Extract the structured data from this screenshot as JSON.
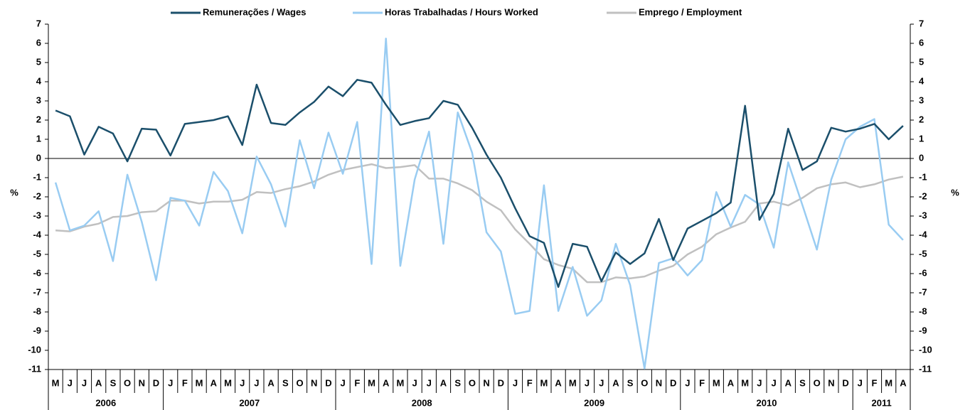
{
  "chart_data": {
    "type": "line",
    "categories": [
      "M",
      "J",
      "J",
      "A",
      "S",
      "O",
      "N",
      "D",
      "J",
      "F",
      "M",
      "A",
      "M",
      "J",
      "J",
      "A",
      "S",
      "O",
      "N",
      "D",
      "J",
      "F",
      "M",
      "A",
      "M",
      "J",
      "J",
      "A",
      "S",
      "O",
      "N",
      "D",
      "J",
      "F",
      "M",
      "A",
      "M",
      "J",
      "J",
      "A",
      "S",
      "O",
      "N",
      "D",
      "J",
      "F",
      "M",
      "A",
      "M",
      "J",
      "J",
      "A",
      "S",
      "O",
      "N",
      "D",
      "J",
      "F",
      "M",
      "A"
    ],
    "years": [
      "2006",
      "2007",
      "2008",
      "2009",
      "2010",
      "2011"
    ],
    "ylabel": "%",
    "y2label": "%",
    "ylim": [
      -11,
      7
    ],
    "yticks": [
      -11,
      -10,
      -9,
      -8,
      -7,
      -6,
      -5,
      -4,
      -3,
      -2,
      -1,
      0,
      1,
      2,
      3,
      4,
      5,
      6,
      7
    ],
    "y2lim": [
      -11,
      7
    ],
    "y2ticks": [
      -11,
      -10,
      -9,
      -8,
      -7,
      -6,
      -5,
      -4,
      -3,
      -2,
      -1,
      0,
      1,
      2,
      3,
      4,
      5,
      6,
      7
    ],
    "series": [
      {
        "name": "Remunerações / Wages",
        "color": "#1b4f6b",
        "values": [
          2.5,
          2.2,
          0.2,
          1.65,
          1.3,
          -0.15,
          1.55,
          1.5,
          0.15,
          1.8,
          1.9,
          2.0,
          2.2,
          0.7,
          3.85,
          1.85,
          1.75,
          2.4,
          2.95,
          3.75,
          3.25,
          4.1,
          3.95,
          2.8,
          1.75,
          1.95,
          2.1,
          3.0,
          2.8,
          1.6,
          0.2,
          -1.0,
          -2.6,
          -4.05,
          -4.4,
          -6.7,
          -4.45,
          -4.6,
          -6.4,
          -4.9,
          -5.5,
          -4.95,
          -3.15,
          -5.3,
          -3.65,
          -3.25,
          -2.85,
          -2.3,
          2.75,
          -3.2,
          -1.85,
          1.55,
          -0.6,
          -0.15,
          1.6,
          1.4,
          1.55,
          1.8,
          1.0,
          1.7
        ]
      },
      {
        "name": "Horas Trabalhadas / Hours Worked",
        "color": "#99ccf2",
        "values": [
          -1.25,
          -3.75,
          -3.5,
          -2.75,
          -5.35,
          -0.85,
          -3.3,
          -6.35,
          -2.05,
          -2.2,
          -3.5,
          -0.7,
          -1.7,
          -3.9,
          0.1,
          -1.35,
          -3.55,
          0.95,
          -1.55,
          1.35,
          -0.8,
          1.9,
          -5.5,
          6.25,
          -5.6,
          -1.1,
          1.4,
          -4.45,
          2.4,
          0.3,
          -3.85,
          -4.85,
          -8.1,
          -7.95,
          -1.4,
          -7.95,
          -5.65,
          -8.2,
          -7.4,
          -4.45,
          -6.6,
          -10.95,
          -5.45,
          -5.2,
          -6.1,
          -5.3,
          -1.75,
          -3.55,
          -1.9,
          -2.4,
          -4.65,
          -0.2,
          -2.45,
          -4.75,
          -1.1,
          1.0,
          1.65,
          2.05,
          -3.45,
          -4.25
        ]
      },
      {
        "name": "Emprego / Employment",
        "color": "#c0c0c0",
        "values": [
          -3.75,
          -3.8,
          -3.55,
          -3.4,
          -3.05,
          -3.0,
          -2.8,
          -2.75,
          -2.2,
          -2.2,
          -2.35,
          -2.25,
          -2.25,
          -2.15,
          -1.75,
          -1.8,
          -1.6,
          -1.45,
          -1.2,
          -0.85,
          -0.6,
          -0.45,
          -0.3,
          -0.5,
          -0.45,
          -0.35,
          -1.05,
          -1.05,
          -1.3,
          -1.65,
          -2.25,
          -2.7,
          -3.7,
          -4.45,
          -5.25,
          -5.55,
          -5.75,
          -6.45,
          -6.45,
          -6.2,
          -6.25,
          -6.15,
          -5.85,
          -5.6,
          -5.0,
          -4.6,
          -3.95,
          -3.6,
          -3.3,
          -2.35,
          -2.25,
          -2.45,
          -2.05,
          -1.55,
          -1.35,
          -1.25,
          -1.5,
          -1.35,
          -1.1,
          -0.95
        ]
      }
    ]
  }
}
